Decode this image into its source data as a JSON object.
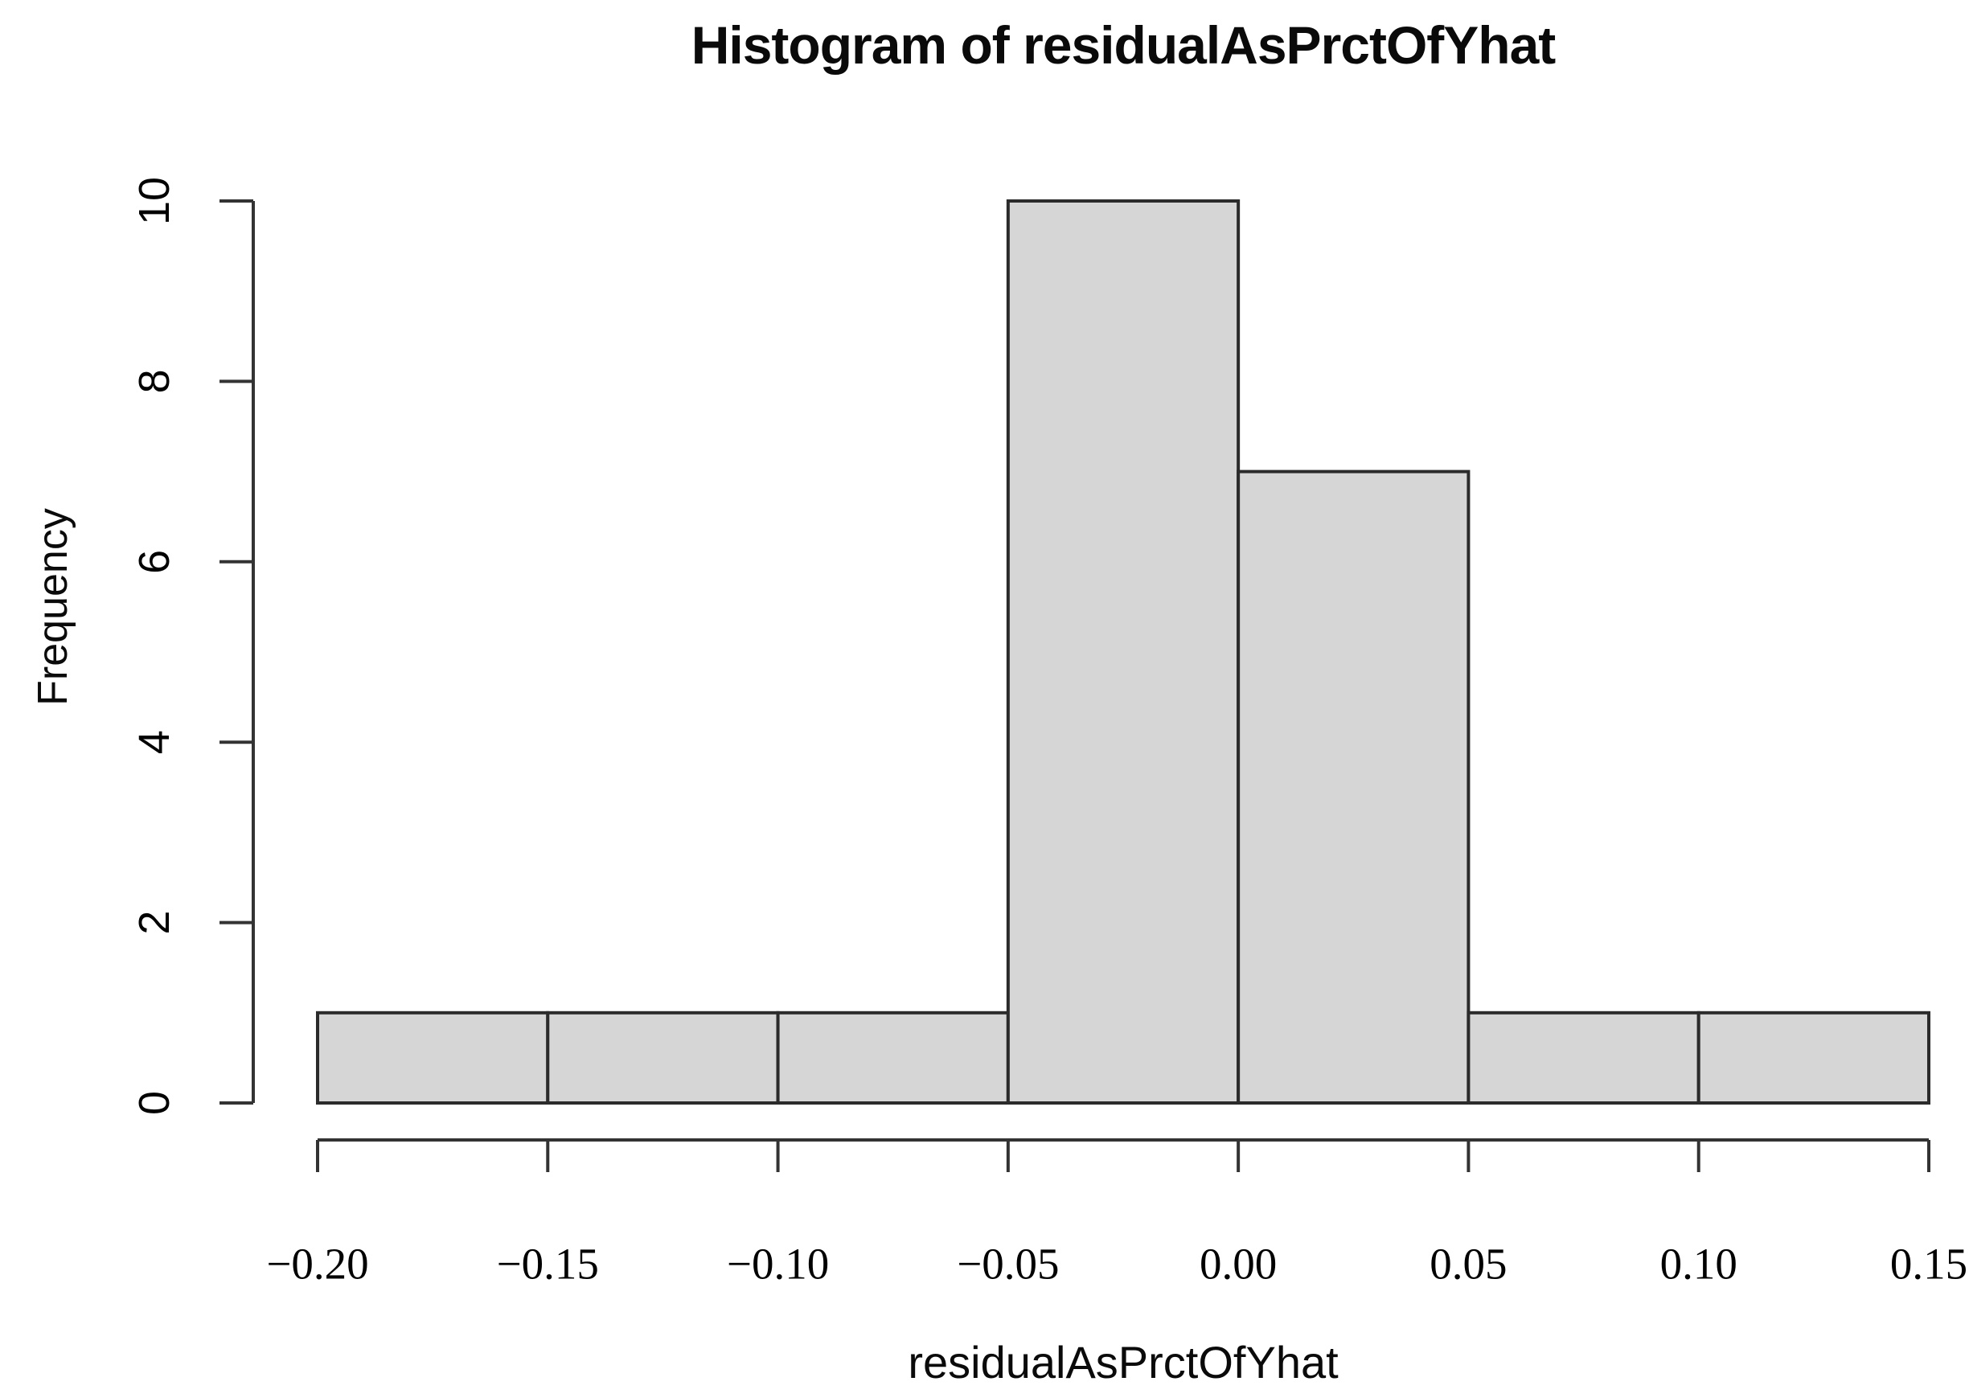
{
  "chart_data": {
    "type": "bar",
    "subtype": "histogram",
    "title": "Histogram of residualAsPrctOfYhat",
    "xlabel": "residualAsPrctOfYhat",
    "ylabel": "Frequency",
    "bin_edges": [
      -0.2,
      -0.15,
      -0.1,
      -0.05,
      0.0,
      0.05,
      0.1,
      0.15
    ],
    "counts": [
      1,
      1,
      1,
      10,
      7,
      1,
      1
    ],
    "x_tick_labels": [
      "−0.20",
      "−0.15",
      "−0.10",
      "−0.05",
      "0.00",
      "0.05",
      "0.10",
      "0.15"
    ],
    "y_ticks": [
      0,
      2,
      4,
      6,
      8,
      10
    ],
    "y_tick_labels": [
      "0",
      "2",
      "4",
      "6",
      "8",
      "10"
    ],
    "xlim": [
      -0.2,
      0.15
    ],
    "ylim": [
      0,
      10
    ],
    "grid": false,
    "legend": "none",
    "colors": {
      "bar_fill": "#d6d6d6",
      "bar_stroke": "#2b2b2b",
      "axis_color": "#333333",
      "text_color": "#000000",
      "background": "#ffffff"
    }
  }
}
